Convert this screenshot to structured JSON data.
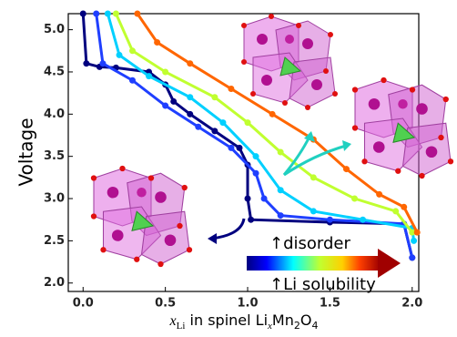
{
  "chart_data": {
    "type": "line",
    "ylabel": "Voltage",
    "xlabel": [
      "x",
      "Li",
      " in spinel Li",
      "x",
      "Mn",
      "2",
      "O",
      "4"
    ],
    "annotations": [
      "↑disorder",
      "↑Li solubility"
    ],
    "xlim": [
      -0.09,
      2.04
    ],
    "ylim": [
      1.9,
      5.19
    ],
    "xticks": [
      {
        "value": 0,
        "label": "0.0"
      },
      0.5,
      {
        "value": 1,
        "label": "1.0"
      },
      1.5,
      {
        "value": 2,
        "label": "2.0"
      }
    ],
    "yticks": [
      {
        "value": 2,
        "label": "2.0"
      },
      2.5,
      {
        "value": 3,
        "label": "3.0"
      },
      3.5,
      {
        "value": 4,
        "label": "4.0"
      },
      4.5,
      {
        "value": 5,
        "label": "5.0"
      }
    ],
    "series": [
      {
        "color": "#00007f",
        "x": [
          0.0,
          0.02,
          0.1,
          0.2,
          0.4,
          0.5,
          0.55,
          0.65,
          0.8,
          0.95,
          1.0,
          1.0,
          1.02,
          1.5,
          1.95,
          2.0
        ],
        "values": [
          5.19,
          4.6,
          4.56,
          4.55,
          4.5,
          4.35,
          4.15,
          4.0,
          3.8,
          3.6,
          3.4,
          3.0,
          2.75,
          2.72,
          2.7,
          2.3
        ]
      },
      {
        "color": "#1f3fff",
        "x": [
          0.08,
          0.12,
          0.3,
          0.5,
          0.7,
          0.9,
          1.05,
          1.1,
          1.2,
          1.5,
          1.95,
          2.0
        ],
        "values": [
          5.19,
          4.6,
          4.4,
          4.1,
          3.85,
          3.6,
          3.3,
          3.0,
          2.8,
          2.75,
          2.7,
          2.3
        ]
      },
      {
        "color": "#00d0ff",
        "x": [
          0.15,
          0.22,
          0.4,
          0.65,
          0.85,
          1.05,
          1.2,
          1.4,
          1.7,
          2.0,
          2.01
        ],
        "values": [
          5.19,
          4.7,
          4.45,
          4.2,
          3.9,
          3.5,
          3.1,
          2.85,
          2.75,
          2.65,
          2.5
        ]
      },
      {
        "color": "#c0ff30",
        "x": [
          0.2,
          0.3,
          0.5,
          0.8,
          1.0,
          1.2,
          1.4,
          1.65,
          1.9,
          2.0
        ],
        "values": [
          5.19,
          4.75,
          4.5,
          4.2,
          3.9,
          3.55,
          3.25,
          3.0,
          2.85,
          2.6
        ]
      },
      {
        "color": "#ff6600",
        "x": [
          0.33,
          0.45,
          0.65,
          0.9,
          1.15,
          1.4,
          1.6,
          1.8,
          1.95,
          2.03
        ],
        "values": [
          5.19,
          4.85,
          4.6,
          4.3,
          4.0,
          3.7,
          3.35,
          3.05,
          2.9,
          2.6
        ]
      }
    ]
  }
}
